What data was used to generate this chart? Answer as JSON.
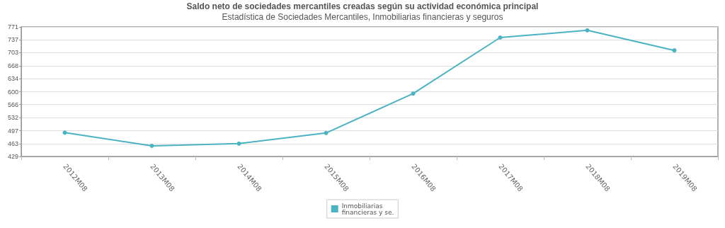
{
  "chart_data": {
    "type": "line",
    "title": "Saldo neto de sociedades mercantiles creadas según su actividad económica principal",
    "subtitle": "Estadística de Sociedades Mercantiles, Inmobiliarias financieras y seguros",
    "categories": [
      "2012M08",
      "2013M08",
      "2014M08",
      "2015M08",
      "2016M08",
      "2017M08",
      "2018M08",
      "2019M08"
    ],
    "series": [
      {
        "name": "Inmobiliarias financieras y se.",
        "color": "#4bb3c1",
        "values": [
          492,
          457,
          463,
          491,
          595,
          743,
          762,
          709
        ]
      }
    ],
    "ylim": [
      429,
      771
    ],
    "yticks": [
      429,
      463,
      497,
      532,
      566,
      600,
      634,
      668,
      703,
      737,
      771
    ],
    "grid": "y",
    "legend": "bottom",
    "marker": "circle",
    "line_style": "solid"
  }
}
